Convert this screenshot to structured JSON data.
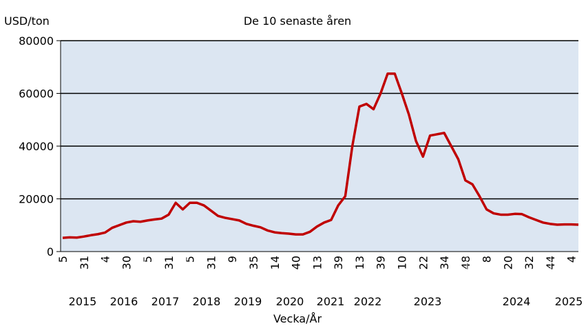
{
  "chart_data": {
    "type": "line",
    "title": "De 10 senaste åren",
    "y_label": "USD/ton",
    "x_label": "Vecka/År",
    "categories": [
      "5",
      null,
      null,
      "31",
      null,
      null,
      "4",
      null,
      null,
      "30",
      null,
      null,
      "5",
      null,
      null,
      "31",
      null,
      null,
      "5",
      null,
      null,
      "31",
      null,
      null,
      "9",
      null,
      null,
      "35",
      null,
      null,
      "14",
      null,
      null,
      "40",
      null,
      null,
      "13",
      null,
      null,
      "39",
      null,
      null,
      "13",
      null,
      null,
      "39",
      null,
      null,
      "10",
      null,
      null,
      "22",
      null,
      null,
      "34",
      null,
      null,
      "48",
      null,
      null,
      "8",
      null,
      null,
      "20",
      null,
      null,
      "32",
      null,
      null,
      "44",
      null,
      null,
      "4",
      null
    ],
    "years": [
      "2015",
      "2016",
      "2017",
      "2018",
      "2019",
      "2020",
      "2021",
      "2022",
      "2023",
      "2024",
      "2025"
    ],
    "series": [
      {
        "name": "USD/ton",
        "color": "#c00000",
        "values": [
          5200,
          5400,
          5300,
          5700,
          6200,
          6600,
          7200,
          9000,
          10000,
          11000,
          11500,
          11300,
          11800,
          12200,
          12500,
          14000,
          18500,
          16000,
          18500,
          18500,
          17500,
          15500,
          13500,
          12800,
          12300,
          11800,
          10500,
          9800,
          9200,
          8000,
          7300,
          7000,
          6800,
          6500,
          6500,
          7500,
          9500,
          11000,
          12000,
          17500,
          21000,
          40000,
          55000,
          56000,
          54000,
          60000,
          67500,
          67500,
          60000,
          52000,
          42000,
          36000,
          44000,
          44500,
          45000,
          40000,
          35000,
          27000,
          25500,
          21000,
          16000,
          14500,
          14000,
          14000,
          14300,
          14200,
          13000,
          12000,
          11000,
          10500,
          10200,
          10300,
          10300,
          10200
        ]
      }
    ],
    "ylim": [
      0,
      80000
    ],
    "yticks": [
      0,
      20000,
      40000,
      60000,
      80000
    ],
    "grid": true,
    "plot_background": "#dce6f2"
  }
}
